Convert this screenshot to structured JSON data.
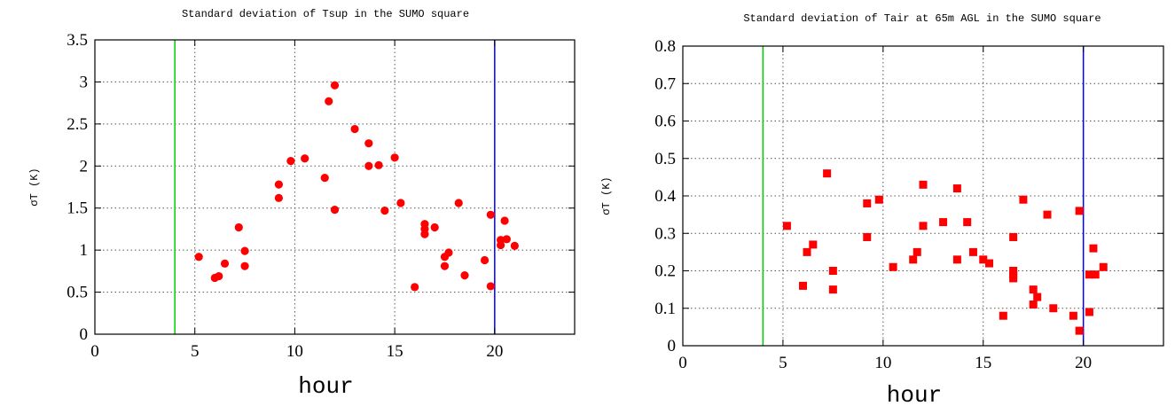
{
  "chart_data": [
    {
      "type": "scatter",
      "title": "Standard deviation of Tsup in the SUMO square",
      "xlabel": "hour",
      "ylabel": "σT (K)",
      "xlim": [
        0,
        24
      ],
      "ylim": [
        0,
        3.5
      ],
      "xticks": [
        0,
        5,
        10,
        15,
        20
      ],
      "yticks": [
        0,
        0.5,
        1,
        1.5,
        2,
        2.5,
        3,
        3.5
      ],
      "ytick_labels": [
        "0",
        "0.5",
        "1",
        "1.5",
        "2",
        "2.5",
        "3",
        "3.5"
      ],
      "grid": true,
      "marker": "circle",
      "color": "#ff0000",
      "vlines": [
        {
          "x": 4,
          "color": "#00cc00"
        },
        {
          "x": 20,
          "color": "#0000ff"
        }
      ],
      "points": [
        [
          5.2,
          0.92
        ],
        [
          6.0,
          0.67
        ],
        [
          6.2,
          0.69
        ],
        [
          6.5,
          0.84
        ],
        [
          7.2,
          1.27
        ],
        [
          7.5,
          0.99
        ],
        [
          7.5,
          0.81
        ],
        [
          9.2,
          1.78
        ],
        [
          9.2,
          1.62
        ],
        [
          9.8,
          2.06
        ],
        [
          10.5,
          2.09
        ],
        [
          11.5,
          1.86
        ],
        [
          11.7,
          2.77
        ],
        [
          12.0,
          2.96
        ],
        [
          12.0,
          1.48
        ],
        [
          13.0,
          2.44
        ],
        [
          13.7,
          2.27
        ],
        [
          13.7,
          2.0
        ],
        [
          14.2,
          2.01
        ],
        [
          14.5,
          1.47
        ],
        [
          15.0,
          2.1
        ],
        [
          15.3,
          1.56
        ],
        [
          16.0,
          0.56
        ],
        [
          16.5,
          1.31
        ],
        [
          16.5,
          1.25
        ],
        [
          16.5,
          1.19
        ],
        [
          17.0,
          1.27
        ],
        [
          17.5,
          0.92
        ],
        [
          17.5,
          0.81
        ],
        [
          17.7,
          0.97
        ],
        [
          18.2,
          1.56
        ],
        [
          18.5,
          0.7
        ],
        [
          19.5,
          0.88
        ],
        [
          19.8,
          1.42
        ],
        [
          19.8,
          0.57
        ],
        [
          20.3,
          1.12
        ],
        [
          20.3,
          1.06
        ],
        [
          20.5,
          1.35
        ],
        [
          20.6,
          1.13
        ],
        [
          21.0,
          1.05
        ]
      ]
    },
    {
      "type": "scatter",
      "title": "Standard deviation of Tair at 65m AGL in the SUMO square",
      "xlabel": "hour",
      "ylabel": "σT (K)",
      "xlim": [
        0,
        24
      ],
      "ylim": [
        0,
        0.8
      ],
      "xticks": [
        0,
        5,
        10,
        15,
        20
      ],
      "yticks": [
        0,
        0.1,
        0.2,
        0.3,
        0.4,
        0.5,
        0.6,
        0.7,
        0.8
      ],
      "ytick_labels": [
        "0",
        "0.1",
        "0.2",
        "0.3",
        "0.4",
        "0.5",
        "0.6",
        "0.7",
        "0.8"
      ],
      "grid": true,
      "marker": "square",
      "color": "#ff0000",
      "vlines": [
        {
          "x": 4,
          "color": "#00cc00"
        },
        {
          "x": 20,
          "color": "#0000ff"
        }
      ],
      "points": [
        [
          5.2,
          0.32
        ],
        [
          6.0,
          0.16
        ],
        [
          6.2,
          0.25
        ],
        [
          6.5,
          0.27
        ],
        [
          7.2,
          0.46
        ],
        [
          7.5,
          0.2
        ],
        [
          7.5,
          0.15
        ],
        [
          9.2,
          0.38
        ],
        [
          9.2,
          0.29
        ],
        [
          9.8,
          0.39
        ],
        [
          10.5,
          0.21
        ],
        [
          11.5,
          0.23
        ],
        [
          11.7,
          0.25
        ],
        [
          12.0,
          0.43
        ],
        [
          12.0,
          0.32
        ],
        [
          13.0,
          0.33
        ],
        [
          13.7,
          0.42
        ],
        [
          13.7,
          0.23
        ],
        [
          14.2,
          0.33
        ],
        [
          14.5,
          0.25
        ],
        [
          15.0,
          0.23
        ],
        [
          15.3,
          0.22
        ],
        [
          16.0,
          0.08
        ],
        [
          16.5,
          0.29
        ],
        [
          16.5,
          0.2
        ],
        [
          16.5,
          0.19
        ],
        [
          16.5,
          0.18
        ],
        [
          17.0,
          0.39
        ],
        [
          17.5,
          0.15
        ],
        [
          17.5,
          0.11
        ],
        [
          17.7,
          0.13
        ],
        [
          18.2,
          0.35
        ],
        [
          18.5,
          0.1
        ],
        [
          19.5,
          0.08
        ],
        [
          19.8,
          0.36
        ],
        [
          19.8,
          0.04
        ],
        [
          20.3,
          0.19
        ],
        [
          20.3,
          0.09
        ],
        [
          20.5,
          0.26
        ],
        [
          20.6,
          0.19
        ],
        [
          21.0,
          0.21
        ]
      ]
    }
  ]
}
